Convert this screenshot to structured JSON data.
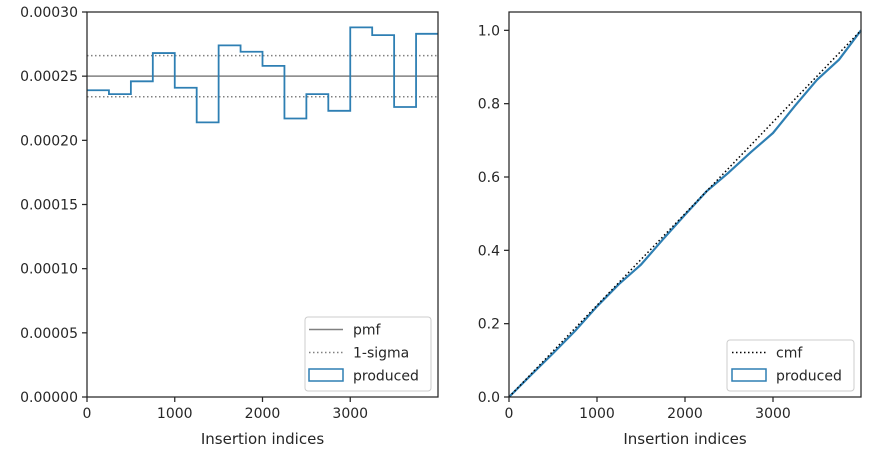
{
  "chart_data": [
    {
      "type": "step",
      "xlabel": "Insertion indices",
      "ylabel": "",
      "xlim": [
        0,
        4000
      ],
      "ylim": [
        0,
        0.0003
      ],
      "xticks": [
        0,
        1000,
        2000,
        3000
      ],
      "xtick_labels": [
        "0",
        "1000",
        "2000",
        "3000"
      ],
      "yticks": [
        0,
        5e-05,
        0.0001,
        0.00015,
        0.0002,
        0.00025,
        0.0003
      ],
      "ytick_labels": [
        "0.00000",
        "0.00005",
        "0.00010",
        "0.00015",
        "0.00020",
        "0.00025",
        "0.00030"
      ],
      "legend_position": "lower right",
      "legend": [
        {
          "label": "pmf",
          "style": "solid-line",
          "color": "#808080"
        },
        {
          "label": "1-sigma",
          "style": "dotted-line",
          "color": "#808080"
        },
        {
          "label": "produced",
          "style": "step-patch",
          "color": "#2e7fb3"
        }
      ],
      "pmf": 0.00025,
      "sigma_band": [
        0.000234,
        0.000266
      ],
      "bin_edges": [
        0,
        250,
        500,
        750,
        1000,
        1250,
        1500,
        1750,
        2000,
        2250,
        2500,
        2750,
        3000,
        3250,
        3500,
        3750,
        4000
      ],
      "produced": [
        0.000239,
        0.000236,
        0.000246,
        0.000268,
        0.000241,
        0.000214,
        0.000274,
        0.000269,
        0.000258,
        0.000217,
        0.000236,
        0.000223,
        0.000288,
        0.000282,
        0.000226,
        0.000283
      ]
    },
    {
      "type": "line",
      "xlabel": "Insertion indices",
      "ylabel": "",
      "xlim": [
        0,
        4000
      ],
      "ylim": [
        0,
        1.05
      ],
      "xticks": [
        0,
        1000,
        2000,
        3000
      ],
      "xtick_labels": [
        "0",
        "1000",
        "2000",
        "3000"
      ],
      "yticks": [
        0,
        0.2,
        0.4,
        0.6,
        0.8,
        1.0
      ],
      "ytick_labels": [
        "0.0",
        "0.2",
        "0.4",
        "0.6",
        "0.8",
        "1.0"
      ],
      "legend_position": "lower right",
      "legend": [
        {
          "label": "cmf",
          "style": "dotted-line",
          "color": "#000000"
        },
        {
          "label": "produced",
          "style": "step-patch",
          "color": "#2e7fb3"
        }
      ],
      "cmf_line": [
        [
          0,
          0
        ],
        [
          4000,
          1
        ]
      ],
      "produced": {
        "x": [
          0,
          250,
          500,
          750,
          1000,
          1250,
          1500,
          1750,
          2000,
          2250,
          2500,
          2750,
          3000,
          3250,
          3500,
          3750,
          4000
        ],
        "y": [
          0,
          0.06,
          0.119,
          0.18,
          0.247,
          0.308,
          0.361,
          0.43,
          0.497,
          0.562,
          0.613,
          0.668,
          0.72,
          0.794,
          0.865,
          0.92,
          1.0
        ]
      }
    }
  ]
}
